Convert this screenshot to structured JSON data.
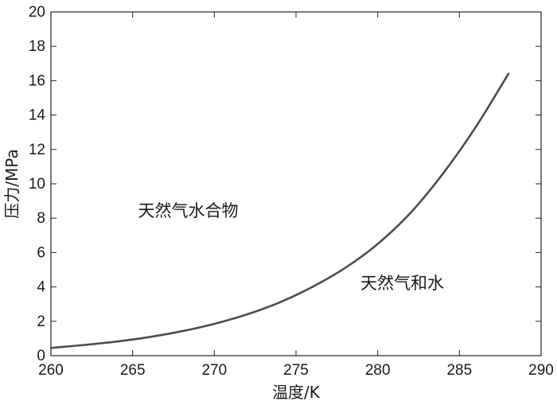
{
  "chart_data": {
    "type": "line",
    "title": "",
    "xlabel": "温度/K",
    "ylabel": "压力/MPa",
    "xlim": [
      260,
      290
    ],
    "ylim": [
      0,
      20
    ],
    "xticks": [
      260,
      265,
      270,
      275,
      280,
      285,
      290
    ],
    "yticks": [
      0,
      2,
      4,
      6,
      8,
      10,
      12,
      14,
      16,
      18,
      20
    ],
    "grid": false,
    "series": [
      {
        "color": "#4d4d4d",
        "x": [
          260,
          262,
          264,
          266,
          268,
          270,
          272,
          274,
          276,
          278,
          280,
          282,
          284,
          286,
          288
        ],
        "y": [
          0.45,
          0.62,
          0.82,
          1.08,
          1.42,
          1.85,
          2.4,
          3.1,
          4.0,
          5.1,
          6.5,
          8.3,
          10.6,
          13.3,
          16.4
        ]
      }
    ],
    "annotations": [
      {
        "text": "天然气水合物",
        "x": 268.4,
        "y": 8.1
      },
      {
        "text": "天然气和水",
        "x": 281.5,
        "y": 3.9
      }
    ]
  }
}
